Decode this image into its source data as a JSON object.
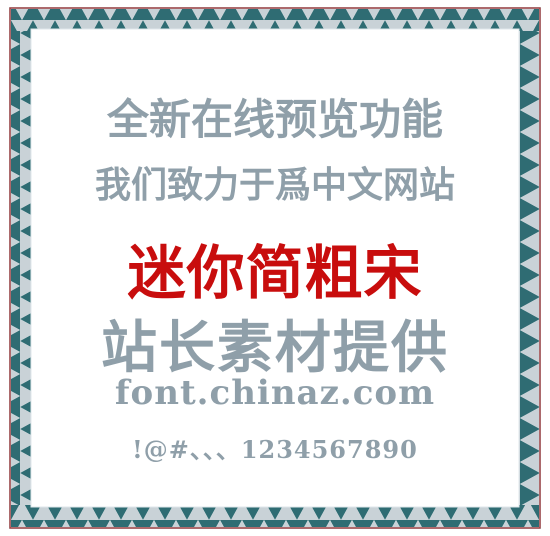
{
  "preview": {
    "lines": [
      "全新在线预览功能",
      "我们致力于爲中文网站",
      "迷你简粗宋",
      "站长素材提供",
      "font.chinaz.com",
      "!@#、、、1234567890"
    ]
  },
  "colors": {
    "text_gray": "#8f9fa9",
    "text_red": "#c80d0d",
    "border_teal": "#2f6c73",
    "border_red": "#b73a3d",
    "border_gray": "#c9d2d7",
    "border_dark": "#3d646b"
  }
}
